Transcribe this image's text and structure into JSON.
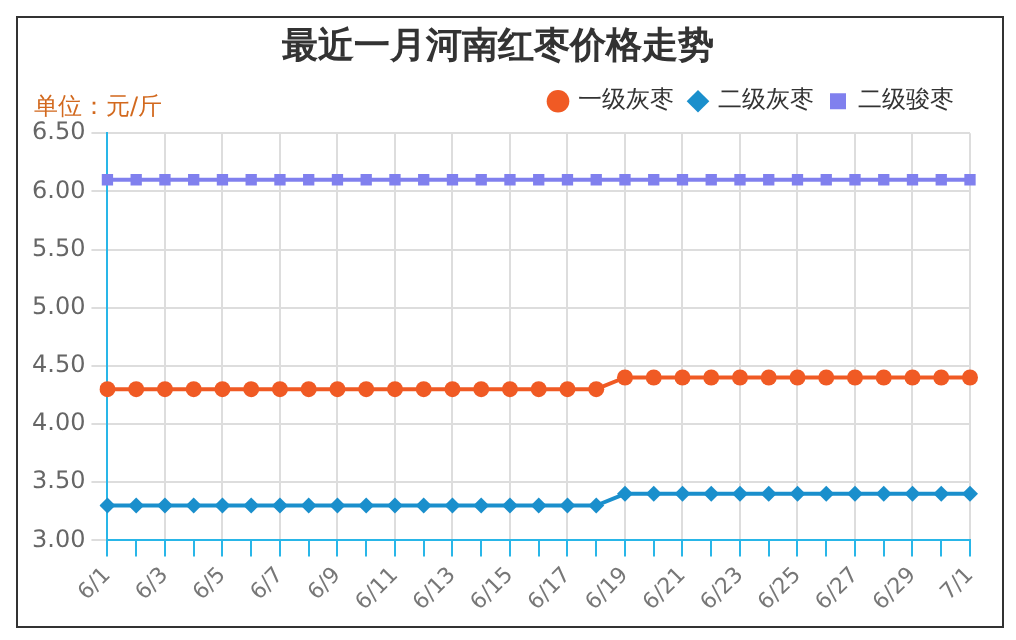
{
  "chart_data": {
    "type": "line",
    "title": "最近一月河南红枣价格走势",
    "ylabel": "单位：元/斤",
    "categories": [
      "6/1",
      null,
      "6/3",
      null,
      "6/5",
      null,
      "6/7",
      null,
      "6/9",
      null,
      "6/11",
      null,
      "6/13",
      null,
      "6/15",
      null,
      "6/17",
      null,
      "6/19",
      null,
      "6/21",
      null,
      "6/23",
      null,
      "6/25",
      null,
      "6/27",
      null,
      "6/29",
      null,
      "7/1"
    ],
    "series": [
      {
        "name": "一级灰枣",
        "color": "#f05a24",
        "marker": "circle",
        "values": [
          4.3,
          4.3,
          4.3,
          4.3,
          4.3,
          4.3,
          4.3,
          4.3,
          4.3,
          4.3,
          4.3,
          4.3,
          4.3,
          4.3,
          4.3,
          4.3,
          4.3,
          4.3,
          4.4,
          4.4,
          4.4,
          4.4,
          4.4,
          4.4,
          4.4,
          4.4,
          4.4,
          4.4,
          4.4,
          4.4,
          4.4
        ]
      },
      {
        "name": "二级灰枣",
        "color": "#1a8fcc",
        "marker": "diamond",
        "values": [
          3.3,
          3.3,
          3.3,
          3.3,
          3.3,
          3.3,
          3.3,
          3.3,
          3.3,
          3.3,
          3.3,
          3.3,
          3.3,
          3.3,
          3.3,
          3.3,
          3.3,
          3.3,
          3.4,
          3.4,
          3.4,
          3.4,
          3.4,
          3.4,
          3.4,
          3.4,
          3.4,
          3.4,
          3.4,
          3.4,
          3.4
        ]
      },
      {
        "name": "二级骏枣",
        "color": "#8080ee",
        "marker": "square",
        "values": [
          6.1,
          6.1,
          6.1,
          6.1,
          6.1,
          6.1,
          6.1,
          6.1,
          6.1,
          6.1,
          6.1,
          6.1,
          6.1,
          6.1,
          6.1,
          6.1,
          6.1,
          6.1,
          6.1,
          6.1,
          6.1,
          6.1,
          6.1,
          6.1,
          6.1,
          6.1,
          6.1,
          6.1,
          6.1,
          6.1,
          6.1
        ]
      }
    ],
    "ylim": [
      3,
      6.5
    ],
    "yticks": [
      {
        "value": 3,
        "label": "3.00"
      },
      {
        "value": 3.5,
        "label": "3.50"
      },
      {
        "value": 4,
        "label": "4.00"
      },
      {
        "value": 4.5,
        "label": "4.50"
      },
      {
        "value": 5,
        "label": "5.00"
      },
      {
        "value": 5.5,
        "label": "5.50"
      },
      {
        "value": 6,
        "label": "6.00"
      },
      {
        "value": 6.5,
        "label": "6.50"
      }
    ],
    "grid": true,
    "legend": "top right"
  }
}
